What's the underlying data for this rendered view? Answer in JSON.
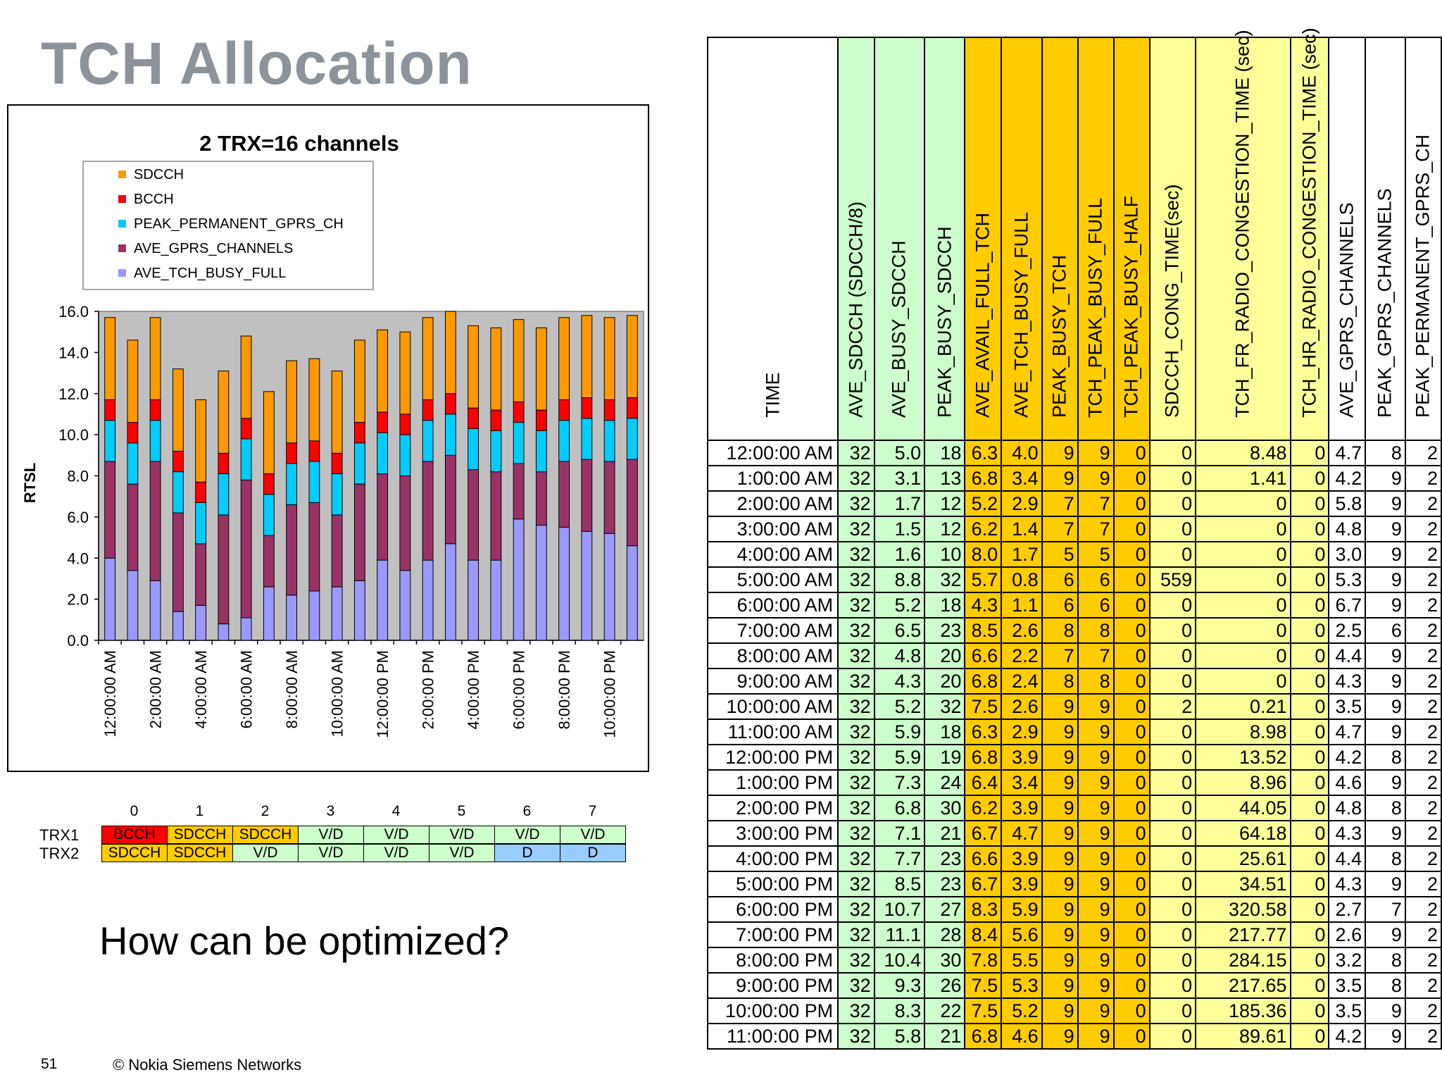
{
  "slide": {
    "title": "TCH Allocation",
    "question": "How can be optimized?",
    "page_number": "51",
    "copyright": "© Nokia Siemens Networks"
  },
  "chart_data": {
    "type": "bar",
    "stacked": true,
    "title": "2 TRX=16 channels",
    "ylabel": "RTSL",
    "xlabel": "",
    "ylim": [
      0,
      16
    ],
    "ytick_step": 2,
    "yticks": [
      "0.0",
      "2.0",
      "4.0",
      "6.0",
      "8.0",
      "10.0",
      "12.0",
      "14.0",
      "16.0"
    ],
    "legend_position": "top",
    "plot_background": "#c0c0c0",
    "categories": [
      "12:00:00 AM",
      "1:00:00 AM",
      "2:00:00 AM",
      "3:00:00 AM",
      "4:00:00 AM",
      "5:00:00 AM",
      "6:00:00 AM",
      "7:00:00 AM",
      "8:00:00 AM",
      "9:00:00 AM",
      "10:00:00 AM",
      "11:00:00 AM",
      "12:00:00 PM",
      "1:00:00 PM",
      "2:00:00 PM",
      "3:00:00 PM",
      "4:00:00 PM",
      "5:00:00 PM",
      "6:00:00 PM",
      "7:00:00 PM",
      "8:00:00 PM",
      "9:00:00 PM",
      "10:00:00 PM",
      "11:00:00 PM"
    ],
    "xtick_labels": [
      "12:00:00 AM",
      "",
      "2:00:00 AM",
      "",
      "4:00:00 AM",
      "",
      "6:00:00 AM",
      "",
      "8:00:00 AM",
      "",
      "10:00:00 AM",
      "",
      "12:00:00 PM",
      "",
      "2:00:00 PM",
      "",
      "4:00:00 PM",
      "",
      "6:00:00 PM",
      "",
      "8:00:00 PM",
      "",
      "10:00:00 PM",
      ""
    ],
    "series": [
      {
        "name": "AVE_TCH_BUSY_FULL",
        "color": "#9999ff",
        "values": [
          4.0,
          3.4,
          2.9,
          1.4,
          1.7,
          0.8,
          1.1,
          2.6,
          2.2,
          2.4,
          2.6,
          2.9,
          3.9,
          3.4,
          3.9,
          4.7,
          3.9,
          3.9,
          5.9,
          5.6,
          5.5,
          5.3,
          5.2,
          4.6
        ]
      },
      {
        "name": "AVE_GPRS_CHANNELS",
        "color": "#993366",
        "values": [
          4.7,
          4.2,
          5.8,
          4.8,
          3.0,
          5.3,
          6.7,
          2.5,
          4.4,
          4.3,
          3.5,
          4.7,
          4.2,
          4.6,
          4.8,
          4.3,
          4.4,
          4.3,
          2.7,
          2.6,
          3.2,
          3.5,
          3.5,
          4.2
        ]
      },
      {
        "name": "PEAK_PERMANENT_GPRS_CH",
        "color": "#00ccff",
        "values": [
          2,
          2,
          2,
          2,
          2,
          2,
          2,
          2,
          2,
          2,
          2,
          2,
          2,
          2,
          2,
          2,
          2,
          2,
          2,
          2,
          2,
          2,
          2,
          2
        ]
      },
      {
        "name": "BCCH",
        "color": "#ff0000",
        "values": [
          1,
          1,
          1,
          1,
          1,
          1,
          1,
          1,
          1,
          1,
          1,
          1,
          1,
          1,
          1,
          1,
          1,
          1,
          1,
          1,
          1,
          1,
          1,
          1
        ]
      },
      {
        "name": "SDCCH",
        "color": "#ff9900",
        "values": [
          4,
          4,
          4,
          4,
          4,
          4,
          4,
          4,
          4,
          4,
          4,
          4,
          4,
          4,
          4,
          4,
          4,
          4,
          4,
          4,
          4,
          4,
          4,
          4
        ]
      }
    ],
    "legend_order": [
      "SDCCH",
      "BCCH",
      "PEAK_PERMANENT_GPRS_CH",
      "AVE_GPRS_CHANNELS",
      "AVE_TCH_BUSY_FULL"
    ]
  },
  "channel_map": {
    "indices": [
      "0",
      "1",
      "2",
      "3",
      "4",
      "5",
      "6",
      "7"
    ],
    "rows": [
      {
        "label": "TRX1",
        "cells": [
          {
            "text": "BCCH",
            "color": "#ff0000"
          },
          {
            "text": "SDCCH",
            "color": "#ffcc00"
          },
          {
            "text": "SDCCH",
            "color": "#ffcc00"
          },
          {
            "text": "V/D",
            "color": "#ccffcc"
          },
          {
            "text": "V/D",
            "color": "#ccffcc"
          },
          {
            "text": "V/D",
            "color": "#ccffcc"
          },
          {
            "text": "V/D",
            "color": "#ccffcc"
          },
          {
            "text": "V/D",
            "color": "#ccffcc"
          }
        ]
      },
      {
        "label": "TRX2",
        "cells": [
          {
            "text": "SDCCH",
            "color": "#ffcc00"
          },
          {
            "text": "SDCCH",
            "color": "#ffcc00"
          },
          {
            "text": "V/D",
            "color": "#ccffcc"
          },
          {
            "text": "V/D",
            "color": "#ccffcc"
          },
          {
            "text": "V/D",
            "color": "#ccffcc"
          },
          {
            "text": "V/D",
            "color": "#ccffcc"
          },
          {
            "text": "D",
            "color": "#99ccff"
          },
          {
            "text": "D",
            "color": "#99ccff"
          }
        ]
      }
    ]
  },
  "table": {
    "headers": [
      "TIME",
      "AVE_SDCCH (SDCCH/8)",
      "AVE_BUSY_SDCCH",
      "PEAK_BUSY_SDCCH",
      "AVE_AVAIL_FULL_TCH",
      "AVE_TCH_BUSY_FULL",
      "PEAK_BUSY_TCH",
      "TCH_PEAK_BUSY_FULL",
      "TCH_PEAK_BUSY_HALF",
      "SDCCH_CONG_TIME(sec)",
      "TCH_FR_RADIO_CONGESTION_TIME (sec)",
      "TCH_HR_RADIO_CONGESTION_TIME (sec)",
      "AVE_GPRS_CHANNELS",
      "PEAK_GPRS_CHANNELS",
      "PEAK_PERMANENT_GPRS_CH"
    ],
    "column_colors": [
      "#ffffff",
      "#ccffcc",
      "#ccffcc",
      "#ccffcc",
      "#ffcc00",
      "#ffcc00",
      "#ffcc00",
      "#ffcc00",
      "#ffcc00",
      "#ffff99",
      "#ffff99",
      "#ffff99",
      "#ffffff",
      "#ffffff",
      "#ffffff"
    ],
    "rows": [
      [
        "12:00:00 AM",
        "32",
        "5.0",
        "18",
        "6.3",
        "4.0",
        "9",
        "9",
        "0",
        "0",
        "8.48",
        "0",
        "4.7",
        "8",
        "2"
      ],
      [
        "1:00:00 AM",
        "32",
        "3.1",
        "13",
        "6.8",
        "3.4",
        "9",
        "9",
        "0",
        "0",
        "1.41",
        "0",
        "4.2",
        "9",
        "2"
      ],
      [
        "2:00:00 AM",
        "32",
        "1.7",
        "12",
        "5.2",
        "2.9",
        "7",
        "7",
        "0",
        "0",
        "0",
        "0",
        "5.8",
        "9",
        "2"
      ],
      [
        "3:00:00 AM",
        "32",
        "1.5",
        "12",
        "6.2",
        "1.4",
        "7",
        "7",
        "0",
        "0",
        "0",
        "0",
        "4.8",
        "9",
        "2"
      ],
      [
        "4:00:00 AM",
        "32",
        "1.6",
        "10",
        "8.0",
        "1.7",
        "5",
        "5",
        "0",
        "0",
        "0",
        "0",
        "3.0",
        "9",
        "2"
      ],
      [
        "5:00:00 AM",
        "32",
        "8.8",
        "32",
        "5.7",
        "0.8",
        "6",
        "6",
        "0",
        "559",
        "0",
        "0",
        "5.3",
        "9",
        "2"
      ],
      [
        "6:00:00 AM",
        "32",
        "5.2",
        "18",
        "4.3",
        "1.1",
        "6",
        "6",
        "0",
        "0",
        "0",
        "0",
        "6.7",
        "9",
        "2"
      ],
      [
        "7:00:00 AM",
        "32",
        "6.5",
        "23",
        "8.5",
        "2.6",
        "8",
        "8",
        "0",
        "0",
        "0",
        "0",
        "2.5",
        "6",
        "2"
      ],
      [
        "8:00:00 AM",
        "32",
        "4.8",
        "20",
        "6.6",
        "2.2",
        "7",
        "7",
        "0",
        "0",
        "0",
        "0",
        "4.4",
        "9",
        "2"
      ],
      [
        "9:00:00 AM",
        "32",
        "4.3",
        "20",
        "6.8",
        "2.4",
        "8",
        "8",
        "0",
        "0",
        "0",
        "0",
        "4.3",
        "9",
        "2"
      ],
      [
        "10:00:00 AM",
        "32",
        "5.2",
        "32",
        "7.5",
        "2.6",
        "9",
        "9",
        "0",
        "2",
        "0.21",
        "0",
        "3.5",
        "9",
        "2"
      ],
      [
        "11:00:00 AM",
        "32",
        "5.9",
        "18",
        "6.3",
        "2.9",
        "9",
        "9",
        "0",
        "0",
        "8.98",
        "0",
        "4.7",
        "9",
        "2"
      ],
      [
        "12:00:00 PM",
        "32",
        "5.9",
        "19",
        "6.8",
        "3.9",
        "9",
        "9",
        "0",
        "0",
        "13.52",
        "0",
        "4.2",
        "8",
        "2"
      ],
      [
        "1:00:00 PM",
        "32",
        "7.3",
        "24",
        "6.4",
        "3.4",
        "9",
        "9",
        "0",
        "0",
        "8.96",
        "0",
        "4.6",
        "9",
        "2"
      ],
      [
        "2:00:00 PM",
        "32",
        "6.8",
        "30",
        "6.2",
        "3.9",
        "9",
        "9",
        "0",
        "0",
        "44.05",
        "0",
        "4.8",
        "8",
        "2"
      ],
      [
        "3:00:00 PM",
        "32",
        "7.1",
        "21",
        "6.7",
        "4.7",
        "9",
        "9",
        "0",
        "0",
        "64.18",
        "0",
        "4.3",
        "9",
        "2"
      ],
      [
        "4:00:00 PM",
        "32",
        "7.7",
        "23",
        "6.6",
        "3.9",
        "9",
        "9",
        "0",
        "0",
        "25.61",
        "0",
        "4.4",
        "8",
        "2"
      ],
      [
        "5:00:00 PM",
        "32",
        "8.5",
        "23",
        "6.7",
        "3.9",
        "9",
        "9",
        "0",
        "0",
        "34.51",
        "0",
        "4.3",
        "9",
        "2"
      ],
      [
        "6:00:00 PM",
        "32",
        "10.7",
        "27",
        "8.3",
        "5.9",
        "9",
        "9",
        "0",
        "0",
        "320.58",
        "0",
        "2.7",
        "7",
        "2"
      ],
      [
        "7:00:00 PM",
        "32",
        "11.1",
        "28",
        "8.4",
        "5.6",
        "9",
        "9",
        "0",
        "0",
        "217.77",
        "0",
        "2.6",
        "9",
        "2"
      ],
      [
        "8:00:00 PM",
        "32",
        "10.4",
        "30",
        "7.8",
        "5.5",
        "9",
        "9",
        "0",
        "0",
        "284.15",
        "0",
        "3.2",
        "8",
        "2"
      ],
      [
        "9:00:00 PM",
        "32",
        "9.3",
        "26",
        "7.5",
        "5.3",
        "9",
        "9",
        "0",
        "0",
        "217.65",
        "0",
        "3.5",
        "8",
        "2"
      ],
      [
        "10:00:00 PM",
        "32",
        "8.3",
        "22",
        "7.5",
        "5.2",
        "9",
        "9",
        "0",
        "0",
        "185.36",
        "0",
        "3.5",
        "9",
        "2"
      ],
      [
        "11:00:00 PM",
        "32",
        "5.8",
        "21",
        "6.8",
        "4.6",
        "9",
        "9",
        "0",
        "0",
        "89.61",
        "0",
        "4.2",
        "9",
        "2"
      ]
    ]
  }
}
